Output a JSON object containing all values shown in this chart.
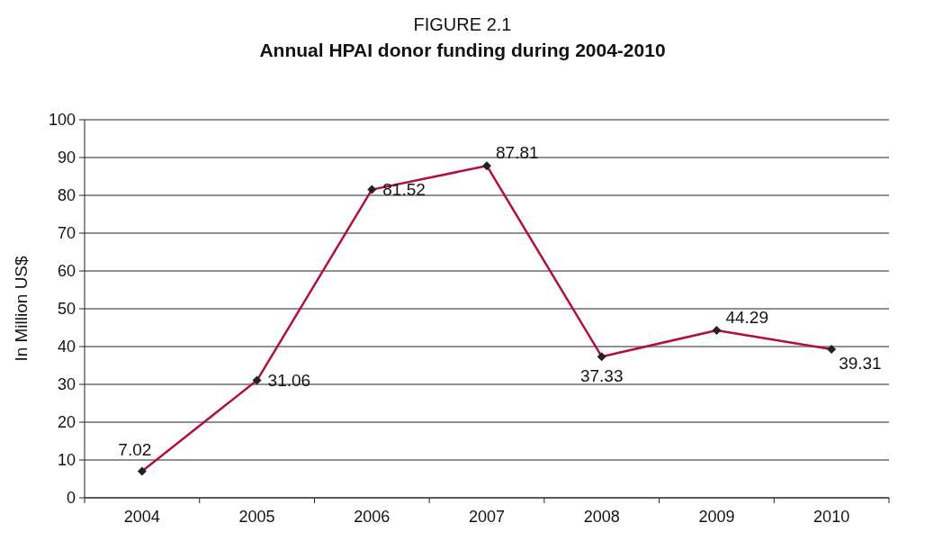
{
  "chart_data": {
    "type": "line",
    "title": "FIGURE 2.1",
    "subtitle": "Annual HPAI donor funding during 2004-2010",
    "ylabel": "In Million US$",
    "categories": [
      "2004",
      "2005",
      "2006",
      "2007",
      "2008",
      "2009",
      "2010"
    ],
    "series": [
      {
        "color": "#b0103a",
        "values": [
          7.02,
          31.06,
          81.52,
          87.81,
          37.33,
          44.29,
          39.31
        ]
      }
    ],
    "ylim": [
      0,
      100
    ],
    "yticks": [
      0,
      10,
      20,
      30,
      40,
      50,
      60,
      70,
      80,
      90,
      100
    ],
    "grid": "y",
    "marker": "diamond",
    "line_style": "solid",
    "data_labels": true
  }
}
